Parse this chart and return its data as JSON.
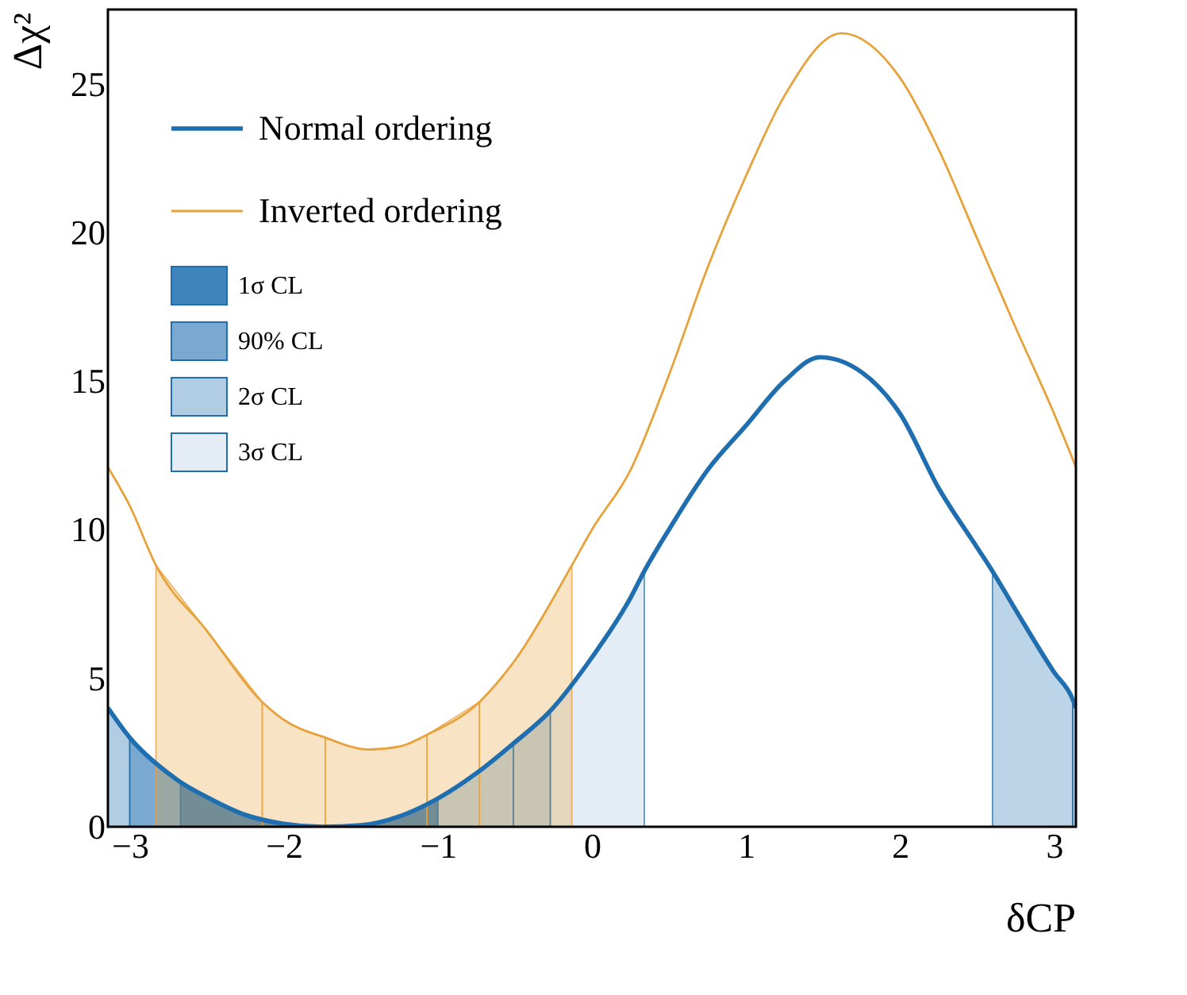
{
  "chart_data": {
    "type": "line",
    "xlabel": "δCP",
    "ylabel": "Δχ²",
    "xlim": [
      -3.14159,
      3.14159
    ],
    "xticks": [
      -3,
      -2,
      -1,
      0,
      1,
      2,
      3
    ],
    "ylim": [
      0,
      27.5
    ],
    "yticks": [
      0,
      5,
      10,
      15,
      20,
      25
    ],
    "grid": false,
    "legend": "top left",
    "marker": "none",
    "line_style": "solid",
    "series": [
      {
        "name": "Normal ordering",
        "color": "#1f6fb0",
        "x": [
          -3.14159,
          -3.0,
          -2.75,
          -2.67,
          -2.5,
          -2.25,
          -2.0,
          -1.75,
          -1.5,
          -1.25,
          -1.0,
          -0.75,
          -0.51,
          -0.27,
          0,
          0.25,
          0.34,
          0.5,
          0.75,
          1.0,
          1.25,
          1.48,
          1.75,
          2.0,
          2.25,
          2.5,
          2.6,
          2.75,
          3.0,
          3.12,
          3.14159
        ],
        "values": [
          4.0,
          3.0,
          1.8,
          1.5,
          1.0,
          0.4,
          0.1,
          0.0,
          0.05,
          0.35,
          0.95,
          1.8,
          2.8,
          3.9,
          5.7,
          7.7,
          8.6,
          10.0,
          12.0,
          13.5,
          15.0,
          15.8,
          15.3,
          13.9,
          11.4,
          9.4,
          8.6,
          7.3,
          5.2,
          4.3,
          4.0
        ]
      },
      {
        "name": "Inverted ordering",
        "color": "#e8a23c",
        "x": [
          -3.14159,
          -3.0,
          -2.83,
          -2.5,
          -2.14,
          -2.0,
          -1.73,
          -1.45,
          -1.25,
          -1.07,
          -0.73,
          -0.5,
          -0.13,
          0,
          0.25,
          0.5,
          0.75,
          1.0,
          1.25,
          1.62,
          2.0,
          2.25,
          2.5,
          2.75,
          3.0,
          3.14159
        ],
        "values": [
          12.1,
          10.8,
          8.8,
          6.6,
          4.2,
          3.6,
          3.0,
          2.6,
          2.7,
          3.1,
          4.2,
          5.6,
          8.8,
          10.0,
          12.0,
          15.2,
          18.8,
          21.9,
          24.6,
          26.7,
          25.2,
          22.8,
          19.8,
          16.8,
          13.9,
          12.1
        ]
      },
      {
        "name": "1σ CL",
        "type": "area",
        "color": "#1f6fb0",
        "x": [
          -2.67,
          -2.5,
          -2.25,
          -2.0,
          -1.75,
          -1.5,
          -1.25,
          -1.0
        ],
        "values": [
          1.5,
          1.0,
          0.4,
          0.1,
          0.0,
          0.05,
          0.35,
          0.95
        ]
      },
      {
        "name": "90% CL",
        "type": "area",
        "color": "#1f6fb0",
        "x": [
          -3.0,
          -2.75,
          -2.67
        ],
        "values": [
          3.0,
          1.8,
          1.5
        ]
      },
      {
        "type": "area",
        "color": "#1f6fb0",
        "x": [
          -1.0,
          -0.75,
          -0.51
        ],
        "values": [
          0.95,
          1.8,
          2.8
        ]
      },
      {
        "type": "area",
        "color": "#e8a23c",
        "x": [
          -1.73,
          -1.45,
          -1.25,
          -1.07
        ],
        "values": [
          3.0,
          2.6,
          2.7,
          3.1
        ]
      },
      {
        "name": "2σ CL",
        "type": "area",
        "color": "#1f6fb0",
        "x": [
          -3.14159,
          -3.0
        ],
        "values": [
          4.0,
          3.0
        ]
      },
      {
        "type": "area",
        "color": "#1f6fb0",
        "x": [
          -0.51,
          -0.27
        ],
        "values": [
          2.8,
          3.9
        ]
      },
      {
        "type": "area",
        "color": "#1f6fb0",
        "x": [
          3.12,
          3.14159
        ],
        "values": [
          4.3,
          4.0
        ]
      },
      {
        "type": "area",
        "color": "#e8a23c",
        "x": [
          -2.14,
          -2.0,
          -1.73
        ],
        "values": [
          4.2,
          3.6,
          3.0
        ]
      },
      {
        "type": "area",
        "color": "#e8a23c",
        "x": [
          -1.07,
          -0.73
        ],
        "values": [
          3.1,
          4.2
        ]
      },
      {
        "name": "3σ CL",
        "type": "area",
        "color": "#1f6fb0",
        "x": [
          -0.27,
          0,
          0.25,
          0.34
        ],
        "values": [
          3.9,
          5.7,
          7.7,
          8.6
        ]
      },
      {
        "type": "area",
        "color": "#1f6fb0",
        "x": [
          2.6,
          2.75,
          3.0,
          3.12
        ],
        "values": [
          8.6,
          7.3,
          5.2,
          4.3
        ]
      },
      {
        "type": "area",
        "color": "#e8a23c",
        "x": [
          -2.83,
          -2.5,
          -2.14
        ],
        "values": [
          8.8,
          6.6,
          4.2
        ]
      },
      {
        "type": "area",
        "color": "#e8a23c",
        "x": [
          -0.73,
          -0.5,
          -0.13
        ],
        "values": [
          4.2,
          5.6,
          8.8
        ]
      }
    ]
  }
}
